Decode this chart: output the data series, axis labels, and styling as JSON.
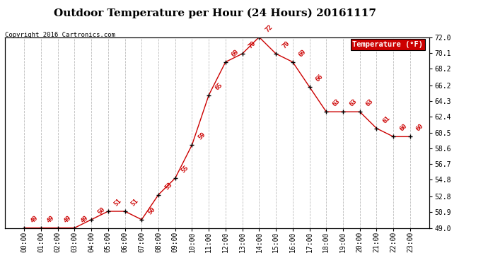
{
  "title": "Outdoor Temperature per Hour (24 Hours) 20161117",
  "copyright": "Copyright 2016 Cartronics.com",
  "legend_label": "Temperature (°F)",
  "hours": [
    "00:00",
    "01:00",
    "02:00",
    "03:00",
    "04:00",
    "05:00",
    "06:00",
    "07:00",
    "08:00",
    "09:00",
    "10:00",
    "11:00",
    "12:00",
    "13:00",
    "14:00",
    "15:00",
    "16:00",
    "17:00",
    "18:00",
    "19:00",
    "20:00",
    "21:00",
    "22:00",
    "23:00"
  ],
  "temps": [
    49,
    49,
    49,
    49,
    50,
    51,
    51,
    50,
    53,
    55,
    59,
    65,
    69,
    70,
    72,
    70,
    69,
    66,
    63,
    63,
    63,
    61,
    60,
    60
  ],
  "line_color": "#cc0000",
  "marker_color": "black",
  "label_color": "#cc0000",
  "bg_color": "#ffffff",
  "grid_color": "#bbbbbb",
  "ylim": [
    49.0,
    72.0
  ],
  "yticks": [
    49.0,
    50.9,
    52.8,
    54.8,
    56.7,
    58.6,
    60.5,
    62.4,
    64.3,
    66.2,
    68.2,
    70.1,
    72.0
  ],
  "title_fontsize": 11,
  "label_fontsize": 6.5,
  "copyright_fontsize": 6.5,
  "tick_fontsize": 7,
  "legend_bg": "#cc0000",
  "legend_text_color": "#ffffff",
  "legend_fontsize": 7.5
}
